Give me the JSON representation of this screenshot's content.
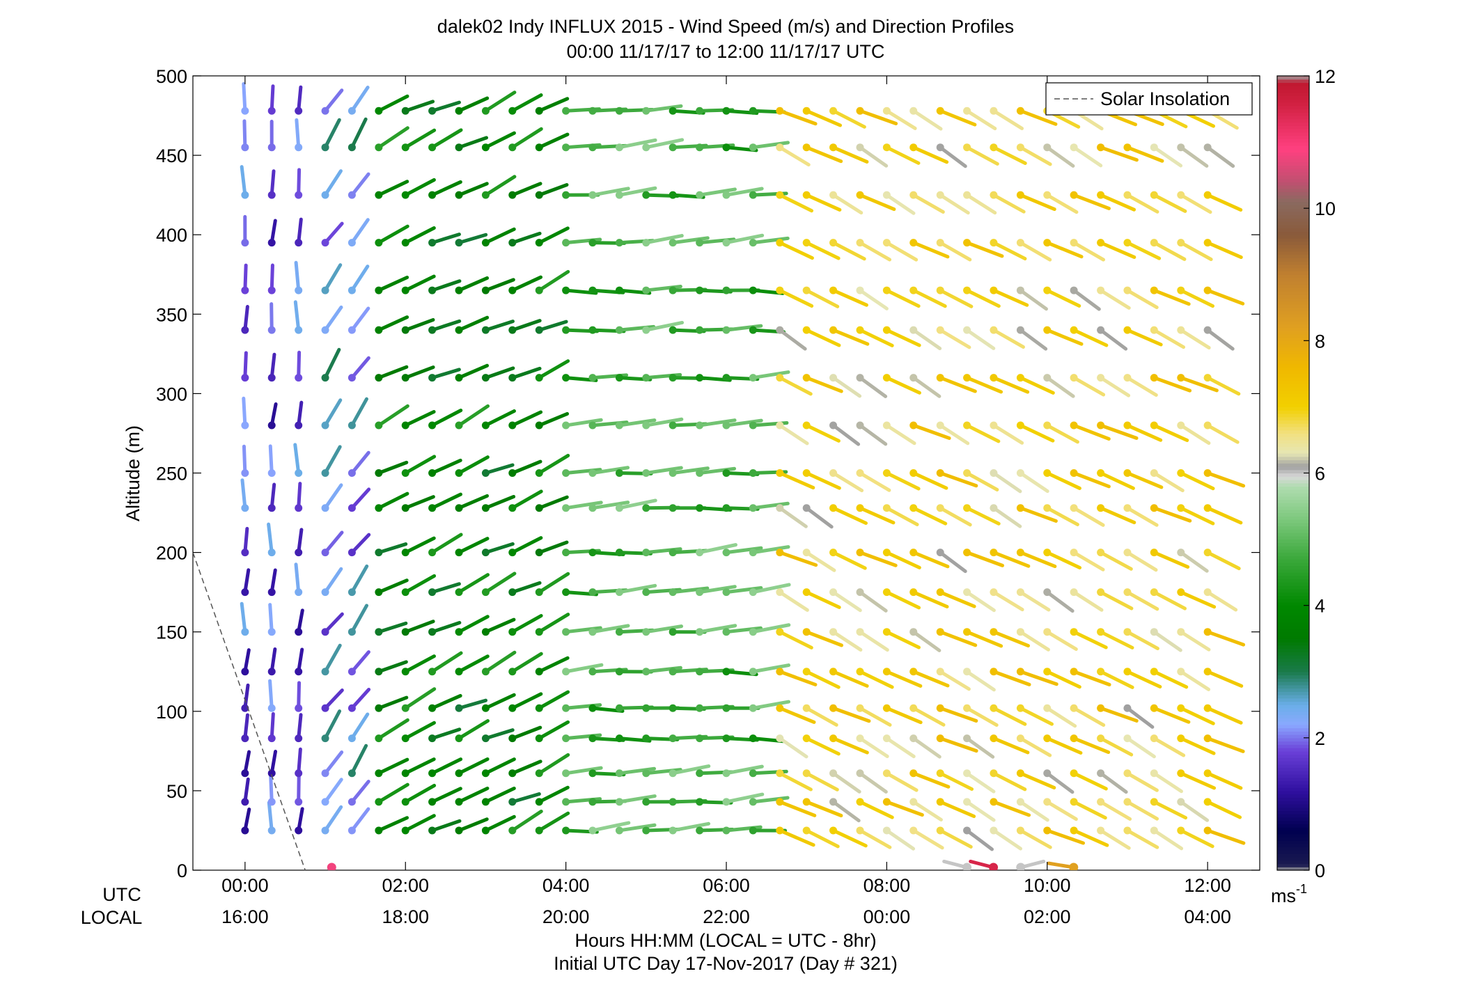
{
  "chart_data": {
    "type": "wind_barb_profile",
    "title": "dalek02 Indy INFLUX 2015 - Wind Speed (m/s) and Direction Profiles",
    "subtitle": "00:00 11/17/17 to 12:00 11/17/17  UTC",
    "ylabel": "Altitude (m)",
    "ylim": [
      0,
      500
    ],
    "yticks": [
      "0",
      "50",
      "100",
      "150",
      "200",
      "250",
      "300",
      "350",
      "400",
      "450",
      "500"
    ],
    "xlim_hours": [
      -0.65,
      12.65
    ],
    "x_ticks_utc": [
      "00:00",
      "02:00",
      "04:00",
      "06:00",
      "08:00",
      "10:00",
      "12:00"
    ],
    "x_ticks_local": [
      "16:00",
      "18:00",
      "20:00",
      "22:00",
      "00:00",
      "02:00",
      "04:00"
    ],
    "x_row_labels": [
      "UTC",
      "LOCAL"
    ],
    "xlabel": "Hours HH:MM  (LOCAL = UTC - 8hr)",
    "xlabel2": "Initial UTC Day 17-Nov-2017 (Day # 321)",
    "legend": {
      "entry": "Solar Insolation",
      "position": "top-right"
    },
    "solar_insolation_line": [
      [
        -0.65,
        200
      ],
      [
        0.75,
        0
      ]
    ],
    "colorbar": {
      "range": [
        0,
        12
      ],
      "ticks": [
        "0",
        "2",
        "4",
        "6",
        "8",
        "10",
        "12"
      ],
      "units": "ms",
      "units_exp": "-1"
    },
    "time_step_hours": 0.333,
    "altitudes": [
      25,
      43,
      61,
      83,
      102,
      125,
      150,
      175,
      200,
      228,
      250,
      280,
      310,
      340,
      365,
      395,
      425,
      455,
      478
    ],
    "time_columns_hours": [
      0.0,
      0.333,
      0.667,
      1.0,
      1.333,
      1.667,
      2.0,
      2.333,
      2.667,
      3.0,
      3.333,
      3.667,
      4.0,
      4.333,
      4.667,
      5.0,
      5.333,
      5.667,
      6.0,
      6.333,
      6.667,
      7.0,
      7.333,
      7.667,
      8.0,
      8.333,
      8.667,
      9.0,
      9.333,
      9.667,
      10.0,
      10.333,
      10.667,
      11.0,
      11.333,
      11.667,
      12.0
    ],
    "phases_approx": [
      {
        "time_range_hours": [
          0.0,
          0.7
        ],
        "speed_ms": 1.8,
        "direction": "near-southerly, vectors pointing up"
      },
      {
        "time_range_hours": [
          1.0,
          1.4
        ],
        "speed_ms": 2.3,
        "direction": "southwesterly, vectors up-right"
      },
      {
        "time_range_hours": [
          1.7,
          3.7
        ],
        "speed_ms": 3.8,
        "direction": "west-southwesterly, vectors up-right"
      },
      {
        "time_range_hours": [
          4.0,
          6.3
        ],
        "speed_ms": 4.8,
        "direction": "westerly, vectors near-horizontal"
      },
      {
        "time_range_hours": [
          6.7,
          12.0
        ],
        "speed_ms": 6.8,
        "direction": "northwesterly, vectors down-right"
      }
    ],
    "surface_points_approx": [
      {
        "time_hours": 1.08,
        "speed_ms": 10.8
      },
      {
        "time_hours": 9.0,
        "speed_ms": 6.0
      },
      {
        "time_hours": 9.33,
        "speed_ms": 11.5
      },
      {
        "time_hours": 9.67,
        "speed_ms": 6.0
      },
      {
        "time_hours": 10.33,
        "speed_ms": 8.2
      }
    ]
  }
}
